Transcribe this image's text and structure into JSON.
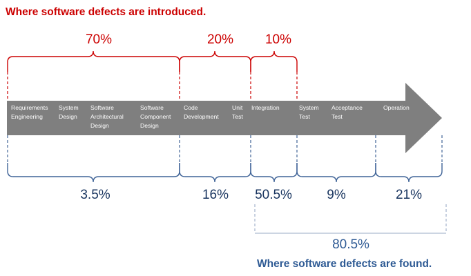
{
  "titles": {
    "introduced": "Where software defects are introduced.",
    "found": "Where software defects are found."
  },
  "introduced_percentages": [
    "70%",
    "20%",
    "10%"
  ],
  "found_percentages": [
    "3.5%",
    "16%",
    "50.5%",
    "9%",
    "21%"
  ],
  "found_total": "80.5%",
  "phases": [
    [
      "Requirements",
      "Engineering"
    ],
    [
      "System",
      "Design"
    ],
    [
      "Software",
      "Architectural",
      "Design"
    ],
    [
      "Software",
      "Component",
      "Design"
    ],
    [
      "Code",
      "Development"
    ],
    [
      "Unit",
      "Test"
    ],
    [
      "Integration"
    ],
    [
      "System",
      "Test"
    ],
    [
      "Acceptance",
      "Test"
    ],
    [
      "Operation"
    ]
  ],
  "colors": {
    "red": "#cc0000",
    "blue_bracket": "#3f6397",
    "blue_text": "#17335e",
    "arrow": "#7f7f7f"
  }
}
